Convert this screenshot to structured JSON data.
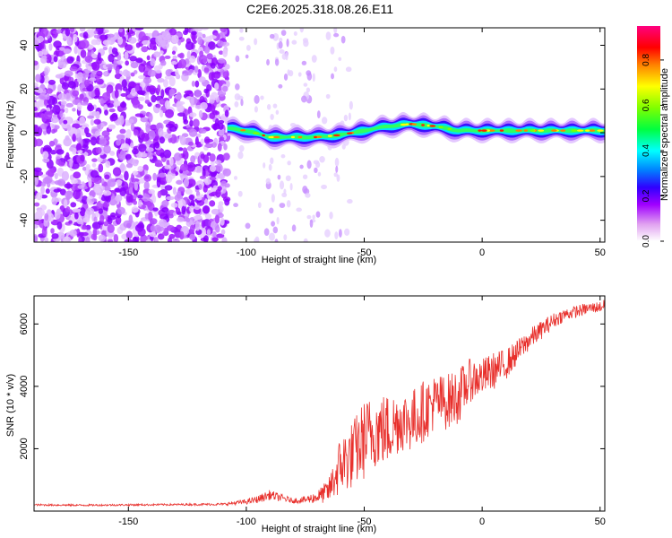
{
  "title": "C2E6.2025.318.08.26.E11",
  "colors": {
    "line": "#e8302c",
    "spectrum_scale": [
      "#f0d0f0",
      "#d060e0",
      "#a000ff",
      "#3000ff",
      "#0060ff",
      "#00ffff",
      "#00ff40",
      "#c0ff00",
      "#ffff00",
      "#ff8000",
      "#ff0000",
      "#ff0080"
    ]
  },
  "chart_data": [
    {
      "type": "heatmap",
      "name": "spectrogram",
      "xlabel": "Height of straight line (km)",
      "ylabel": "Frequency (Hz)",
      "xlim": [
        -190,
        52
      ],
      "ylim": [
        -50,
        48
      ],
      "xticks": [
        -150,
        -100,
        -50,
        0,
        50
      ],
      "xtick_labels": [
        "-150",
        "-100",
        "-50",
        "0",
        "50"
      ],
      "yticks": [
        40,
        20,
        0,
        -20,
        -40
      ],
      "ytick_labels": [
        "40",
        "20",
        "0",
        "-20",
        "-40"
      ],
      "colorbar": {
        "label": "Normalized spectral amplitude",
        "range": [
          0,
          0.95
        ],
        "ticks": [
          0,
          0.2,
          0.4,
          0.6,
          0.8
        ],
        "tick_labels": [
          "0.0",
          "0.2",
          "0.4",
          "0.6",
          "0.8"
        ]
      },
      "ridge": {
        "x": [
          -108,
          -100,
          -90,
          -80,
          -70,
          -60,
          -50,
          -40,
          -30,
          -20,
          -10,
          0,
          10,
          20,
          30,
          40,
          52
        ],
        "y": [
          2,
          1,
          -2,
          -2,
          -2,
          -1,
          1,
          3,
          4,
          3,
          1,
          1,
          1,
          1,
          1,
          1,
          1
        ]
      }
    },
    {
      "type": "line",
      "name": "snr",
      "xlabel": "Height of straight line (km)",
      "ylabel": "SNR (10 * v/v)",
      "xlim": [
        -190,
        52
      ],
      "ylim": [
        0,
        6900
      ],
      "xticks": [
        -150,
        -100,
        -50,
        0,
        50
      ],
      "xtick_labels": [
        "-150",
        "-100",
        "-50",
        "0",
        "50"
      ],
      "yticks": [
        2000,
        4000,
        6000
      ],
      "ytick_labels": [
        "2000",
        "4000",
        "6000"
      ],
      "series": [
        {
          "name": "SNR",
          "x": [
            -190,
            -170,
            -150,
            -130,
            -110,
            -100,
            -95,
            -90,
            -85,
            -80,
            -75,
            -70,
            -65,
            -60,
            -55,
            -50,
            -45,
            -40,
            -35,
            -30,
            -25,
            -20,
            -15,
            -10,
            -5,
            0,
            5,
            10,
            15,
            20,
            25,
            30,
            35,
            40,
            45,
            50,
            52
          ],
          "y": [
            200,
            190,
            200,
            210,
            220,
            300,
            380,
            520,
            420,
            330,
            360,
            450,
            650,
            1500,
            1800,
            2300,
            2600,
            2600,
            2900,
            2900,
            3200,
            3500,
            3500,
            3700,
            4200,
            4300,
            4500,
            4700,
            5100,
            5500,
            5800,
            6100,
            6300,
            6400,
            6500,
            6550,
            6600
          ],
          "noise": [
            30,
            30,
            30,
            30,
            40,
            80,
            120,
            160,
            120,
            80,
            120,
            200,
            400,
            1000,
            1100,
            1300,
            1200,
            1200,
            1000,
            1000,
            1000,
            900,
            900,
            900,
            700,
            600,
            600,
            500,
            400,
            350,
            300,
            250,
            200,
            200,
            180,
            180,
            180
          ]
        }
      ]
    }
  ]
}
